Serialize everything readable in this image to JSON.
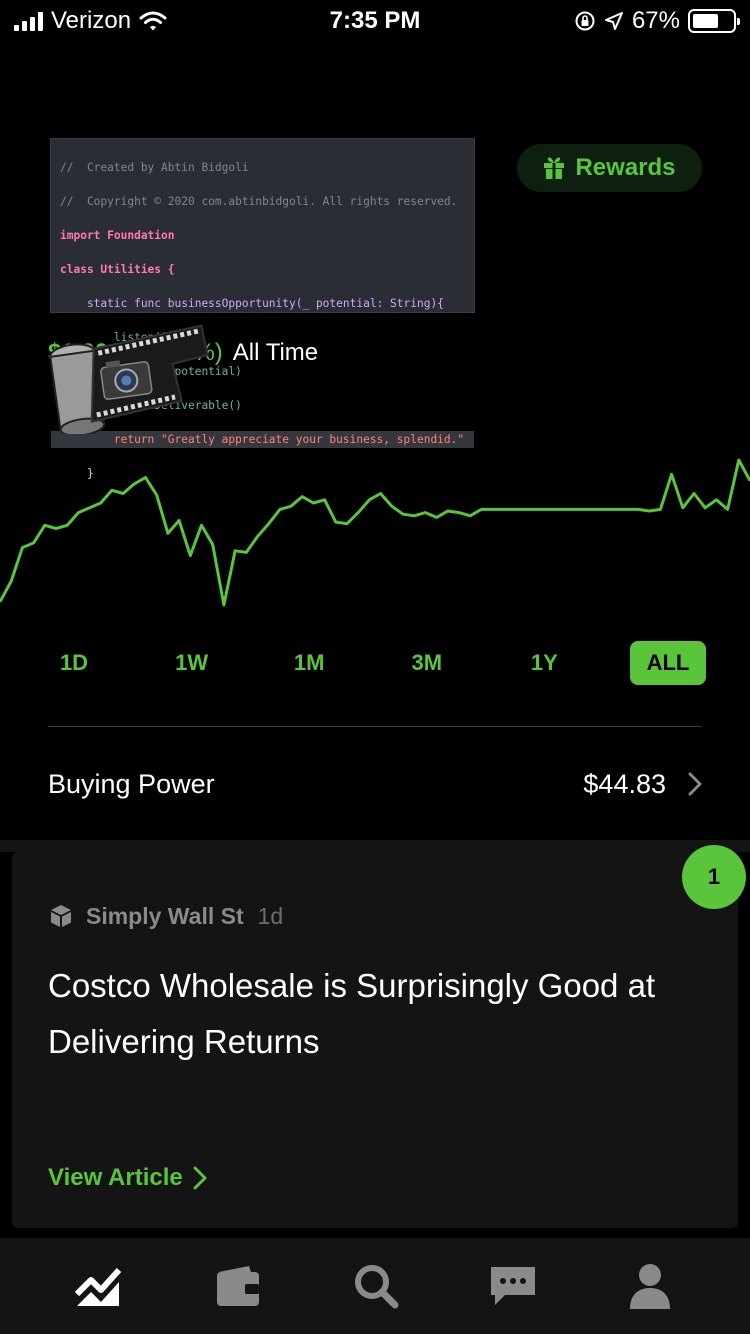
{
  "status_bar": {
    "carrier": "Verizon",
    "time": "7:35 PM",
    "battery": "67%",
    "battery_level": 0.67,
    "icons": [
      "signal-icon",
      "wifi-icon",
      "orientation-lock-icon",
      "location-arrow-icon",
      "battery-icon"
    ]
  },
  "code_snippet": {
    "lines": [
      "//  Created by Abtin Bidgoli",
      "//  Copyright © 2020 com.abtinbidgoli. All rights reserved.",
      "import Foundation",
      "class Utilities {",
      "    static func businessOpportunity(_ potential: String){",
      "        listen()",
      "        maximize(potential)",
      "        clientDeliverable()",
      "        return \"Greatly appreciate your business, splendid.\"",
      "    }"
    ]
  },
  "rewards": {
    "label": "Rewards",
    "icon": "gift-icon"
  },
  "performance": {
    "value_partial": "$1,00",
    "change": "(103.29%)",
    "period": "All Time",
    "icon": "film-camera-icon"
  },
  "chart_data": {
    "type": "line",
    "series": [
      {
        "values": [
          12,
          25,
          46,
          49,
          60,
          58,
          60,
          68,
          71,
          74,
          82,
          80,
          86,
          90,
          79,
          55,
          63,
          41,
          60,
          48,
          10,
          44,
          43,
          53,
          61,
          70,
          72,
          78,
          74,
          76,
          62,
          61,
          68,
          76,
          80,
          72,
          67,
          66,
          68,
          65,
          69,
          68,
          66,
          70,
          70,
          70,
          70,
          70,
          70,
          70,
          70,
          70,
          70,
          70,
          70,
          70,
          70,
          70,
          69,
          70,
          92,
          71,
          80,
          71,
          76,
          70,
          101,
          88
        ]
      }
    ],
    "color": "#5ac53b"
  },
  "ranges": {
    "items": [
      "1D",
      "1W",
      "1M",
      "3M",
      "1Y",
      "ALL"
    ],
    "selected": "ALL"
  },
  "buying_power": {
    "label": "Buying Power",
    "value": "$44.83"
  },
  "news": {
    "badge_count": "1",
    "source": "Simply Wall St",
    "age": "1d",
    "title": "Costco Wholesale is Surprisingly Good at Delivering Returns",
    "cta": "View Article"
  },
  "tab_bar": {
    "items": [
      "chart-icon",
      "wallet-icon",
      "search-icon",
      "messages-icon",
      "account-icon"
    ]
  },
  "colors": {
    "accent": "#5ac53b",
    "background": "#000000",
    "card": "#141414"
  }
}
